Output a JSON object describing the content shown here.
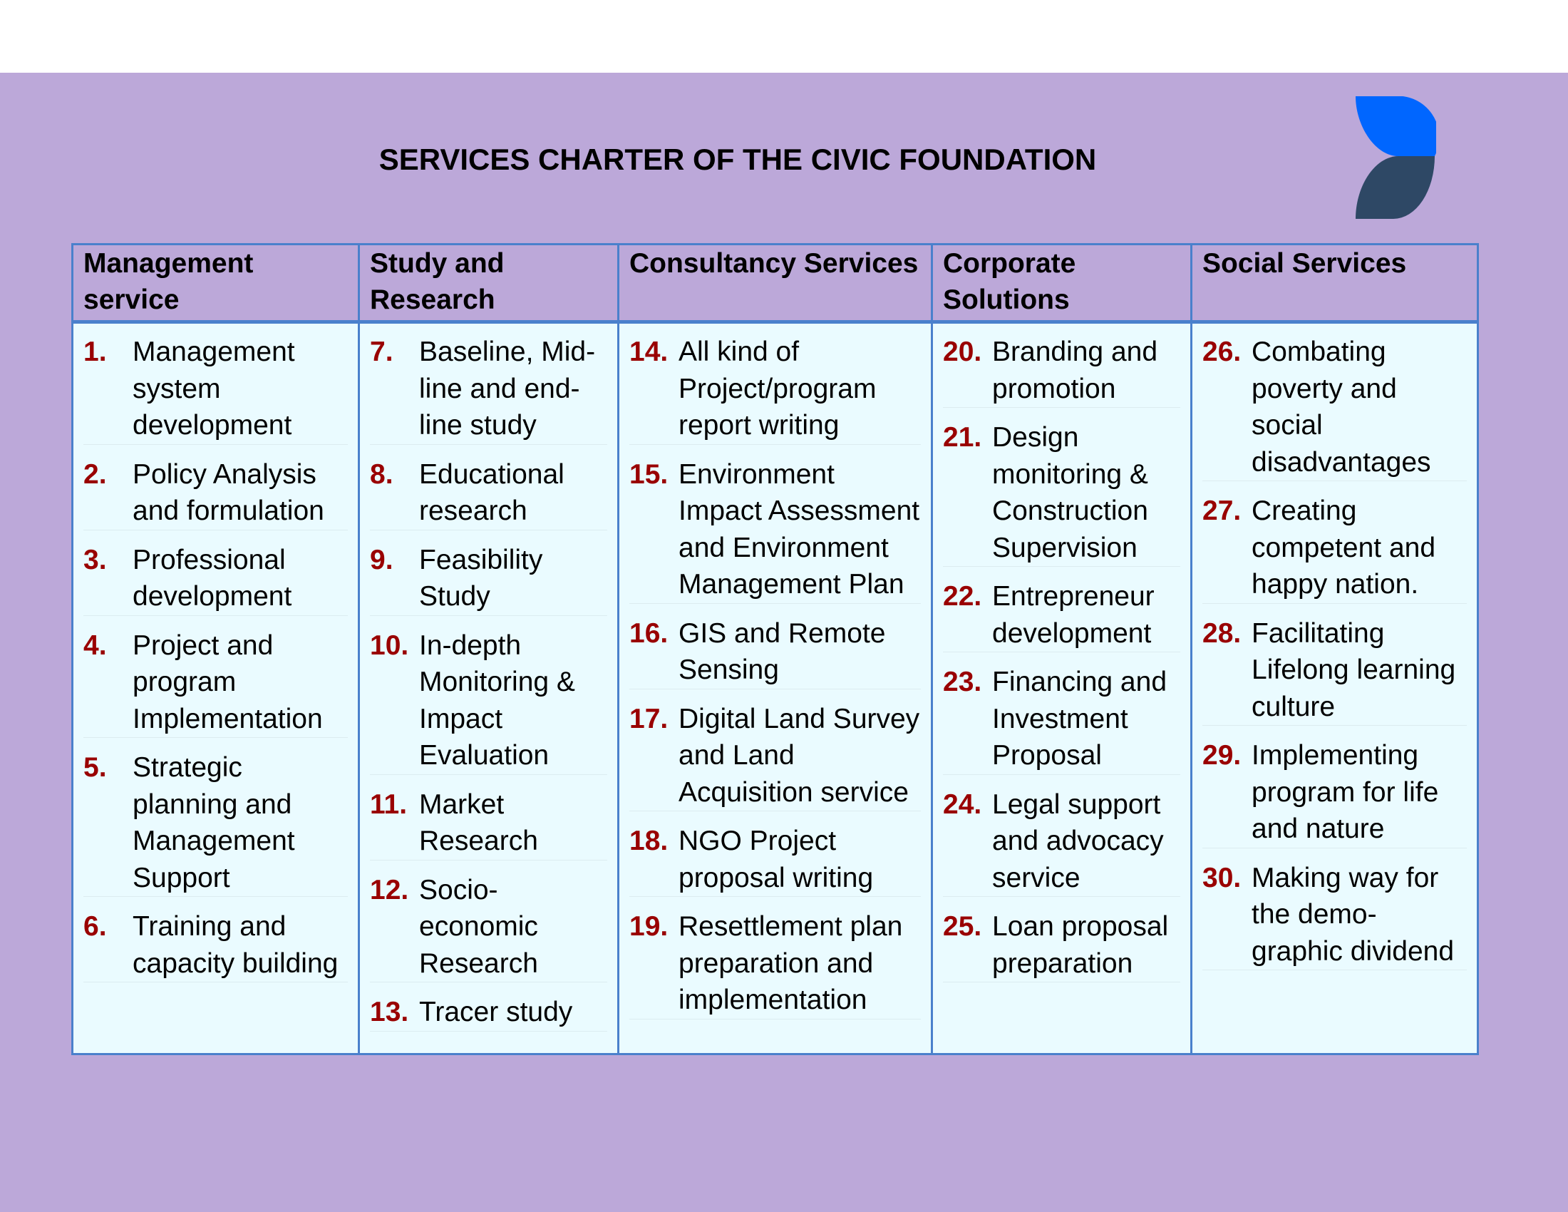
{
  "title": "SERVICES CHARTER OF THE CIVIC FOUNDATION",
  "colors": {
    "background": "#bca8d9",
    "cell": "#eafbff",
    "border": "#4a80cc",
    "number": "#990000",
    "logo_top": "#0066ff",
    "logo_bottom": "#2e4865"
  },
  "columns": [
    {
      "header": "Management service",
      "items": [
        {
          "num": "1.",
          "text": "Management system development"
        },
        {
          "num": "2.",
          "text": "Policy Analysis and formulation"
        },
        {
          "num": "3.",
          "text": "Professional development"
        },
        {
          "num": "4.",
          "text": "Project and program Implementation"
        },
        {
          "num": "5.",
          "text": "Strategic planning and Management Support"
        },
        {
          "num": "6.",
          "text": "Training and capacity building"
        }
      ]
    },
    {
      "header": "Study and Research",
      "items": [
        {
          "num": "7.",
          "text": "Baseline, Mid-line and end-line study"
        },
        {
          "num": "8.",
          "text": "Educational research"
        },
        {
          "num": "9.",
          "text": "Feasibility Study"
        },
        {
          "num": "10.",
          "text": "In-depth Monitoring & Impact Evaluation"
        },
        {
          "num": "11.",
          "text": "Market Research"
        },
        {
          "num": "12.",
          "text": "Socio-economic Research"
        },
        {
          "num": "13.",
          "text": "Tracer study"
        }
      ]
    },
    {
      "header": "Consultancy Services",
      "items": [
        {
          "num": "14.",
          "text": "All kind of Project/program report writing"
        },
        {
          "num": "15.",
          "text": "Environment Impact Assessment and Environment Management Plan"
        },
        {
          "num": "16.",
          "text": "GIS and Remote Sensing"
        },
        {
          "num": "17.",
          "text": "Digital Land Survey and Land Acquisition service"
        },
        {
          "num": "18.",
          "text": "NGO Project proposal writing"
        },
        {
          "num": "19.",
          "text": "Resettlement plan preparation and implementation"
        }
      ]
    },
    {
      "header": "Corporate Solutions",
      "items": [
        {
          "num": "20.",
          "text": "Branding and promotion"
        },
        {
          "num": "21.",
          "text": "Design monitoring & Construction Supervision"
        },
        {
          "num": "22.",
          "text": "Entrepreneur development"
        },
        {
          "num": "23.",
          "text": "Financing and Investment Proposal"
        },
        {
          "num": "24.",
          "text": "Legal support and advocacy service"
        },
        {
          "num": "25.",
          "text": "Loan proposal preparation"
        }
      ]
    },
    {
      "header": "Social Services",
      "items": [
        {
          "num": "26.",
          "text": "Combating poverty and social disadvantages"
        },
        {
          "num": "27.",
          "text": "Creating competent and happy nation."
        },
        {
          "num": "28.",
          "text": "Facilitating Lifelong learning culture"
        },
        {
          "num": "29.",
          "text": "Implementing program for life and nature"
        },
        {
          "num": "30.",
          "text": "Making way for the demo-graphic dividend"
        }
      ]
    }
  ]
}
